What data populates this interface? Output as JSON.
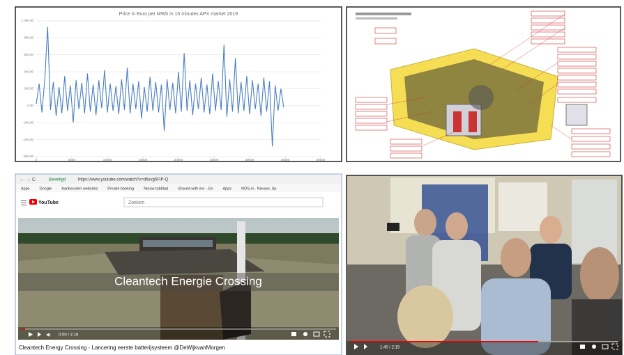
{
  "chart_data": {
    "type": "line",
    "title": "Price in Euro per MWh in 15 minutes APX market 2019",
    "x": [
      0,
      400,
      800,
      1200,
      1600,
      2000,
      2400,
      2800,
      3200,
      3600,
      4000,
      4400,
      4800,
      5200,
      5600,
      6000,
      6400,
      6800,
      7200,
      7600,
      8000,
      8400,
      8800,
      9200,
      9600,
      10000,
      10400,
      10800,
      11200,
      11600,
      12000,
      12400,
      12800,
      13200,
      13600,
      14000,
      14400,
      14800,
      15200,
      15600,
      16000,
      16400,
      16800,
      17200,
      17600,
      18000,
      18400,
      18800,
      19200,
      19600,
      20000,
      20400,
      20800,
      21200,
      21600,
      22000,
      22400,
      22800,
      23200,
      23600,
      24000,
      24400,
      24800,
      25200,
      25600,
      26000,
      26400,
      26800,
      27200,
      27600,
      28000,
      28400,
      28800,
      29200,
      29600,
      30000,
      30400,
      30800,
      31200,
      31600,
      32000,
      32400,
      32800,
      33200,
      33600,
      34000,
      34400,
      34800
    ],
    "series": [
      {
        "name": "Price",
        "color": "#4a7fc1",
        "values": [
          20,
          260,
          -80,
          310,
          930,
          -50,
          280,
          -120,
          220,
          -90,
          350,
          -60,
          240,
          -200,
          300,
          -40,
          270,
          -90,
          380,
          -70,
          250,
          -110,
          300,
          -30,
          420,
          -80,
          260,
          -60,
          230,
          -100,
          310,
          -50,
          450,
          -90,
          260,
          -40,
          290,
          -150,
          220,
          -70,
          340,
          -60,
          280,
          -80,
          250,
          -300,
          310,
          -50,
          270,
          -90,
          400,
          -70,
          620,
          -60,
          300,
          -110,
          260,
          -40,
          330,
          -80,
          250,
          -100,
          380,
          -60,
          290,
          -50,
          720,
          -130,
          310,
          -70,
          560,
          -90,
          280,
          -60,
          350,
          -100,
          300,
          -40,
          260,
          -120,
          330,
          -70,
          290,
          -480,
          240,
          -60,
          200,
          -20
        ]
      }
    ],
    "xlim": [
      0,
      40000
    ],
    "xticks": [
      0,
      5000,
      10000,
      15000,
      20000,
      25000,
      30000,
      35000,
      40000
    ],
    "ylim": [
      -600,
      1000
    ],
    "yticks": [
      {
        "value": -600,
        "label": "-600,00"
      },
      {
        "value": -400,
        "label": "-400,00"
      },
      {
        "value": -200,
        "label": "-200,00"
      },
      {
        "value": 0,
        "label": "0,00"
      },
      {
        "value": 200,
        "label": "200,00"
      },
      {
        "value": 400,
        "label": "400,00"
      },
      {
        "value": 600,
        "label": "600,00"
      },
      {
        "value": 800,
        "label": "800,00"
      },
      {
        "value": 1000,
        "label": "1.000,00"
      }
    ],
    "grid": true
  },
  "browser": {
    "secure": "Beveiligd",
    "url": "https://www.youtube.com/watch?v=d6svg5FIP-Q",
    "bookmarks": [
      "Apps",
      "Google",
      "Aanbevolen websites",
      "Private banking",
      "Nieuw tabblad",
      "Shared with me - Go",
      "Apps",
      "NOS.nl - Nieuws, Sp"
    ]
  },
  "youtube": {
    "logo": "YouTube",
    "search": "Zoeken",
    "overlay": "Cleantech Energie Crossing",
    "time": "0:00 / 2:16",
    "video_title": "Cleantech Energy Crossing - Lancering eerste batterijsysteem @DeWijkvanMorgen"
  },
  "photo": {
    "time": "1:40 / 2:15"
  }
}
